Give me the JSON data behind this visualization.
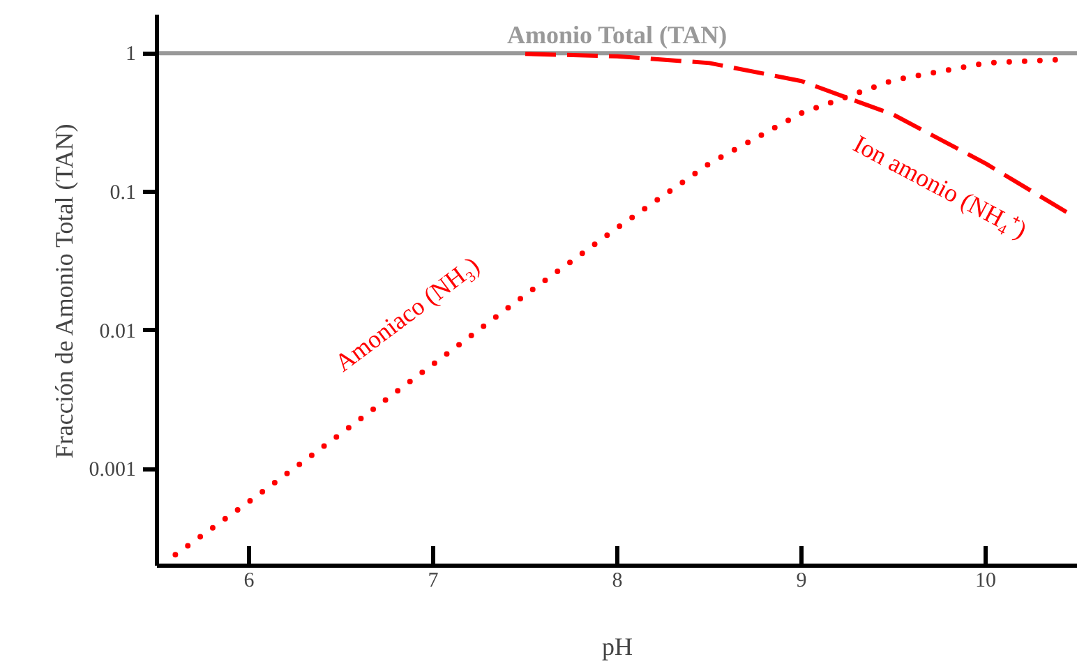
{
  "chart_data": {
    "type": "line",
    "xlabel": "pH",
    "ylabel": "Fracción de Amonio Total (TAN)",
    "log": "y",
    "xlim": [
      5.5,
      10.5
    ],
    "ylim": [
      0.0002,
      1.9
    ],
    "xticks": [
      6,
      7,
      8,
      9,
      10
    ],
    "yticks": [
      {
        "value": 0.001,
        "label": "0.001"
      },
      {
        "value": 0.01,
        "label": "0.01"
      },
      {
        "value": 0.1,
        "label": "0.1"
      },
      {
        "value": 1,
        "label": "1"
      }
    ],
    "grid": false,
    "marker": "none",
    "series": [
      {
        "name": "Amonio Total (TAN)",
        "color": "#999999",
        "line_style": "solid",
        "x": [
          5.5,
          10.5
        ],
        "values": [
          1,
          1
        ]
      },
      {
        "name": "Amoniaco (NH₃)",
        "color": "#ff0000",
        "line_style": "dotted",
        "x": [
          5.6,
          6,
          6.5,
          7,
          7.5,
          8,
          8.5,
          9,
          9.5,
          10,
          10.4
        ],
        "values": [
          0.00024,
          0.00058,
          0.0018,
          0.0057,
          0.018,
          0.055,
          0.16,
          0.37,
          0.64,
          0.85,
          0.9
        ]
      },
      {
        "name": "Ion amonio (NH₄⁺)",
        "color": "#ff0000",
        "line_style": "dashed",
        "x": [
          7.5,
          8,
          8.5,
          9,
          9.5,
          10,
          10.45
        ],
        "values": [
          0.99,
          0.95,
          0.85,
          0.63,
          0.36,
          0.16,
          0.07
        ]
      }
    ]
  }
}
